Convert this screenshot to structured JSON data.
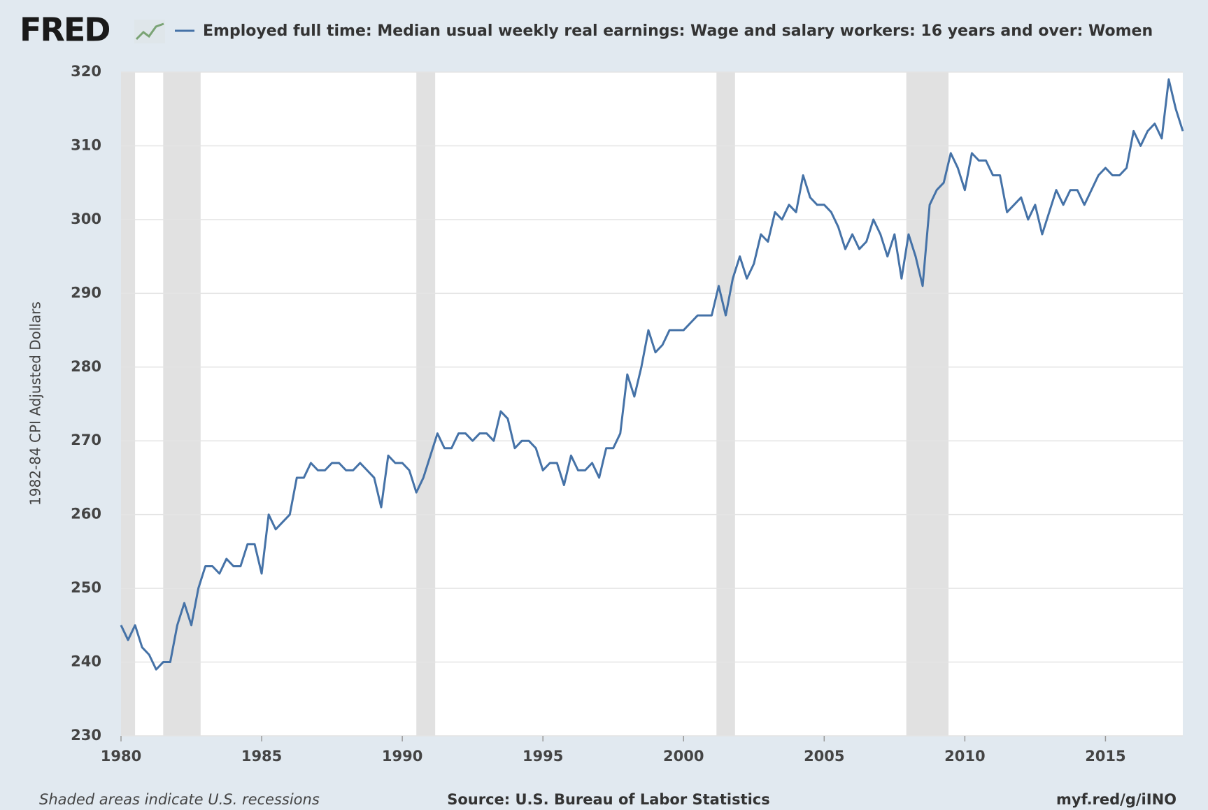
{
  "logo": "FRED",
  "chart_data": {
    "type": "line",
    "ylabel": "1982-84 CPI Adjusted Dollars",
    "note": "Shaded areas indicate U.S. recessions",
    "source": "Source: U.S. Bureau of Labor Statistics",
    "link": "myf.red/g/iINO",
    "x": [
      1980,
      1980.25,
      1980.5,
      1980.75,
      1981,
      1981.25,
      1981.5,
      1981.75,
      1982,
      1982.25,
      1982.5,
      1982.75,
      1983,
      1983.25,
      1983.5,
      1983.75,
      1984,
      1984.25,
      1984.5,
      1984.75,
      1985,
      1985.25,
      1985.5,
      1985.75,
      1986,
      1986.25,
      1986.5,
      1986.75,
      1987,
      1987.25,
      1987.5,
      1987.75,
      1988,
      1988.25,
      1988.5,
      1988.75,
      1989,
      1989.25,
      1989.5,
      1989.75,
      1990,
      1990.25,
      1990.5,
      1990.75,
      1991,
      1991.25,
      1991.5,
      1991.75,
      1992,
      1992.25,
      1992.5,
      1992.75,
      1993,
      1993.25,
      1993.5,
      1993.75,
      1994,
      1994.25,
      1994.5,
      1994.75,
      1995,
      1995.25,
      1995.5,
      1995.75,
      1996,
      1996.25,
      1996.5,
      1996.75,
      1997,
      1997.25,
      1997.5,
      1997.75,
      1998,
      1998.25,
      1998.5,
      1998.75,
      1999,
      1999.25,
      1999.5,
      1999.75,
      2000,
      2000.25,
      2000.5,
      2000.75,
      2001,
      2001.25,
      2001.5,
      2001.75,
      2002,
      2002.25,
      2002.5,
      2002.75,
      2003,
      2003.25,
      2003.5,
      2003.75,
      2004,
      2004.25,
      2004.5,
      2004.75,
      2005,
      2005.25,
      2005.5,
      2005.75,
      2006,
      2006.25,
      2006.5,
      2006.75,
      2007,
      2007.25,
      2007.5,
      2007.75,
      2008,
      2008.25,
      2008.5,
      2008.75,
      2009,
      2009.25,
      2009.5,
      2009.75,
      2010,
      2010.25,
      2010.5,
      2010.75,
      2011,
      2011.25,
      2011.5,
      2011.75,
      2012,
      2012.25,
      2012.5,
      2012.75,
      2013,
      2013.25,
      2013.5,
      2013.75,
      2014,
      2014.25,
      2014.5,
      2014.75,
      2015,
      2015.25,
      2015.5,
      2015.75,
      2016,
      2016.25,
      2016.5,
      2016.75,
      2017,
      2017.25,
      2017.5,
      2017.75
    ],
    "series": [
      {
        "name": "Employed full time: Median usual weekly real earnings: Wage and salary workers: 16 years and over: Women",
        "color": "#4572a7",
        "values": [
          245,
          243,
          245,
          242,
          241,
          239,
          240,
          240,
          245,
          248,
          245,
          250,
          253,
          253,
          252,
          254,
          253,
          253,
          256,
          256,
          252,
          260,
          258,
          259,
          260,
          265,
          265,
          267,
          266,
          266,
          267,
          267,
          266,
          266,
          267,
          266,
          265,
          261,
          268,
          267,
          267,
          266,
          263,
          265,
          268,
          271,
          269,
          269,
          271,
          271,
          270,
          271,
          271,
          270,
          274,
          273,
          269,
          270,
          270,
          269,
          266,
          267,
          267,
          264,
          268,
          266,
          266,
          267,
          265,
          269,
          269,
          271,
          279,
          276,
          280,
          285,
          282,
          283,
          285,
          285,
          285,
          286,
          287,
          287,
          287,
          291,
          287,
          292,
          295,
          292,
          294,
          298,
          297,
          301,
          300,
          302,
          301,
          306,
          303,
          302,
          302,
          301,
          299,
          296,
          298,
          296,
          297,
          300,
          298,
          295,
          298,
          292,
          298,
          295,
          291,
          302,
          304,
          305,
          309,
          307,
          304,
          309,
          308,
          308,
          306,
          306,
          301,
          302,
          303,
          300,
          302,
          298,
          301,
          304,
          302,
          304,
          304,
          302,
          304,
          306,
          307,
          306,
          306,
          307,
          312,
          310,
          312,
          313,
          311,
          319,
          315,
          312
        ]
      }
    ],
    "recessions": [
      [
        1980,
        1980.5
      ],
      [
        1981.5,
        1982.83
      ],
      [
        1990.5,
        1991.17
      ],
      [
        2001.17,
        2001.83
      ],
      [
        2007.92,
        2009.42
      ]
    ],
    "recession_color": "#e1e1e1",
    "xlim": [
      1980,
      2017.75
    ],
    "xticks": [
      1980,
      1985,
      1990,
      1995,
      2000,
      2005,
      2010,
      2015
    ],
    "ylim": [
      230,
      320
    ],
    "yticks": [
      230,
      240,
      250,
      260,
      270,
      280,
      290,
      300,
      310,
      320
    ],
    "grid": true
  }
}
